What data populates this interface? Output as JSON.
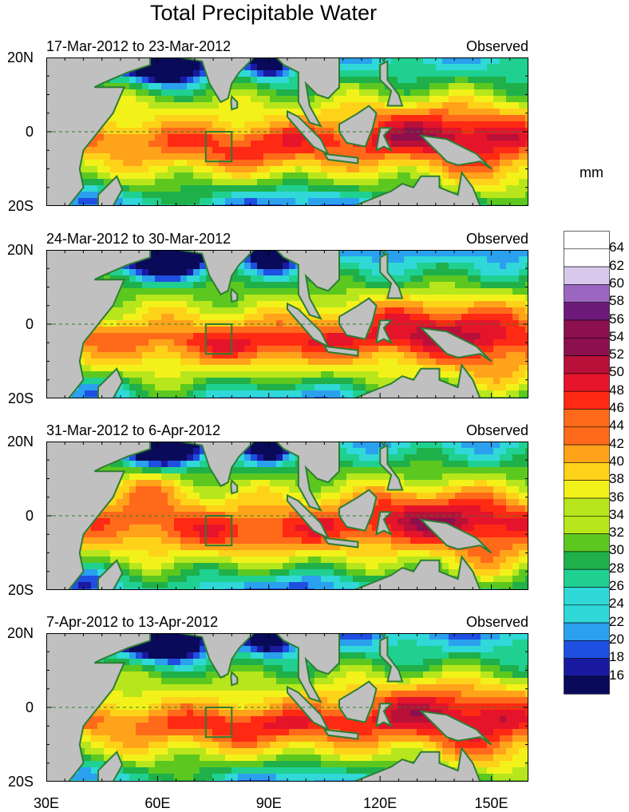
{
  "title": "Total Precipitable Water",
  "unit": "mm",
  "panels": [
    {
      "range": "17-Mar-2012 to 23-Mar-2012",
      "label": "Observed"
    },
    {
      "range": "24-Mar-2012 to 30-Mar-2012",
      "label": "Observed"
    },
    {
      "range": "31-Mar-2012 to 6-Apr-2012",
      "label": "Observed"
    },
    {
      "range": "7-Apr-2012 to 13-Apr-2012",
      "label": "Observed"
    }
  ],
  "lat_labels": [
    "20N",
    "0",
    "20S"
  ],
  "lon_labels": [
    "30E",
    "60E",
    "90E",
    "120E",
    "150E"
  ],
  "colorbar_labels": [
    "64",
    "62",
    "60",
    "58",
    "56",
    "54",
    "52",
    "50",
    "48",
    "46",
    "44",
    "42",
    "40",
    "38",
    "36",
    "34",
    "32",
    "30",
    "28",
    "26",
    "24",
    "22",
    "20",
    "18",
    "16"
  ],
  "colors": {
    "land": "#c0c0c0",
    "coast": "#2e7d32",
    "ramp": [
      "#0a0a5a",
      "#1a1aa0",
      "#1f4fe0",
      "#2aa0ee",
      "#30d8d8",
      "#20d090",
      "#1fb04a",
      "#5cc81f",
      "#b8e61c",
      "#f2f21a",
      "#ffd21a",
      "#ffa31a",
      "#ff6a1a",
      "#ff2a14",
      "#e5142a",
      "#b81038",
      "#8c0f4e",
      "#6e1a7a",
      "#9a66c0",
      "#d8c8ec",
      "#ffffff"
    ]
  }
}
